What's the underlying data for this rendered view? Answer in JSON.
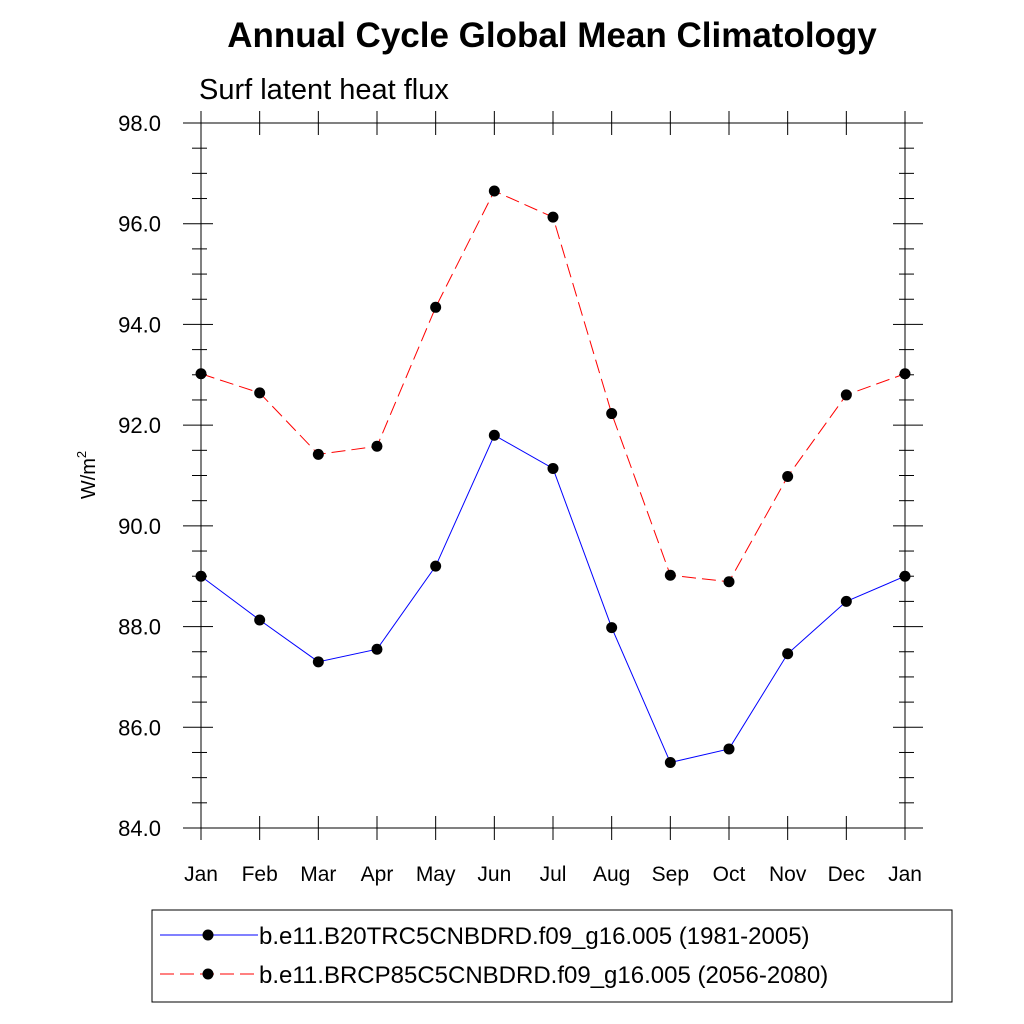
{
  "chart_data": {
    "type": "line",
    "title": "Annual Cycle Global Mean Climatology",
    "subtitle": "Surf latent heat flux",
    "ylabel": "W/m",
    "ylabel_superscript": "2",
    "categories": [
      "Jan",
      "Feb",
      "Mar",
      "Apr",
      "May",
      "Jun",
      "Jul",
      "Aug",
      "Sep",
      "Oct",
      "Nov",
      "Dec",
      "Jan"
    ],
    "ylim": [
      84.0,
      98.0
    ],
    "yticks": [
      "84.0",
      "86.0",
      "88.0",
      "90.0",
      "92.0",
      "94.0",
      "96.0",
      "98.0"
    ],
    "grid": false,
    "legend_position": "bottom",
    "series": [
      {
        "name": "b.e11.B20TRC5CNBDRD.f09_g16.005 (1981-2005)",
        "color": "#0000ff",
        "line_style": "solid",
        "values": [
          89.0,
          88.13,
          87.3,
          87.55,
          89.2,
          91.8,
          91.14,
          87.98,
          85.3,
          85.57,
          87.46,
          88.5,
          89.0
        ]
      },
      {
        "name": "b.e11.BRCP85C5CNBDRD.f09_g16.005 (2056-2080)",
        "color": "#ff0000",
        "line_style": "dashed",
        "values": [
          93.02,
          92.64,
          91.42,
          91.58,
          94.34,
          96.65,
          96.13,
          92.23,
          89.02,
          88.89,
          90.98,
          92.6,
          93.02
        ]
      }
    ]
  }
}
